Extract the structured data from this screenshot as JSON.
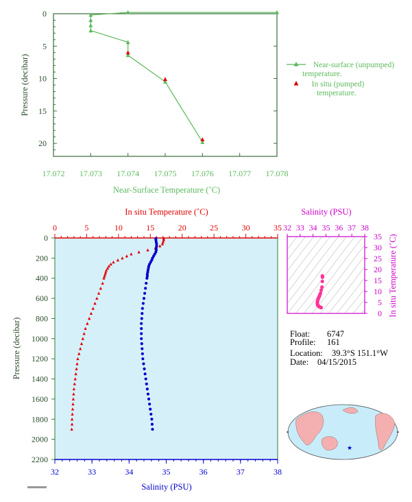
{
  "colors": {
    "green": "#5cb85c",
    "dark_green": "#2e7d32",
    "red": "#e00000",
    "blue": "#0000cc",
    "magenta": "#cc00cc",
    "pink": "#ff3399",
    "axis_text": "#2a4a2a",
    "plot_bg": "#d6f0fa",
    "land": "#f4b0b0",
    "ocean": "#c8ecfa"
  },
  "info": {
    "float_label": "Float:",
    "float_value": "6747",
    "profile_label": "Profile:",
    "profile_value": "161",
    "location_label": "Location:",
    "location_value": "39.3°S  151.1°W",
    "date_label": "Date:",
    "date_value": "04/15/2015"
  },
  "chart_data": [
    {
      "id": "near_surface",
      "type": "line",
      "xlabel": "Near-Surface Temperature (˚C)",
      "ylabel": "Pressure (decibar)",
      "xlim": [
        17.072,
        17.078
      ],
      "ylim": [
        22,
        0
      ],
      "x_ticks": [
        "17.072",
        "17.073",
        "17.074",
        "17.075",
        "17.076",
        "17.077",
        "17.078"
      ],
      "y_ticks": [
        "0",
        "5",
        "10",
        "15",
        "20"
      ],
      "legend_position": "right",
      "series": [
        {
          "name": "Near-surface (unpumped)\ntemperature.",
          "marker": "triangle",
          "color": "#5cb85c",
          "points": [
            [
              17.078,
              -0.2
            ],
            [
              17.074,
              -0.2
            ],
            [
              17.073,
              0.2
            ],
            [
              17.073,
              1.0
            ],
            [
              17.073,
              1.8
            ],
            [
              17.073,
              2.6
            ],
            [
              17.074,
              4.4
            ],
            [
              17.074,
              6.4
            ],
            [
              17.075,
              10.5
            ],
            [
              17.076,
              19.8
            ]
          ]
        },
        {
          "name": "In situ (pumped)\ntemperature.",
          "marker": "triangle",
          "color": "#e00000",
          "points": [
            [
              17.074,
              6.0
            ],
            [
              17.075,
              10.1
            ],
            [
              17.076,
              19.4
            ]
          ]
        }
      ]
    },
    {
      "id": "profile",
      "type": "scatter",
      "top_xlabel": "In situ Temperature (˚C)",
      "bottom_xlabel": "Salinity (PSU)",
      "ylabel": "Pressure (decibar)",
      "temp_lim": [
        0,
        35
      ],
      "sal_lim": [
        32,
        38
      ],
      "ylim": [
        2200,
        0
      ],
      "temp_ticks": [
        "0",
        "5",
        "10",
        "15",
        "20",
        "25",
        "30",
        "35"
      ],
      "sal_ticks": [
        "32",
        "33",
        "34",
        "35",
        "36",
        "37",
        "38"
      ],
      "y_ticks": [
        "0",
        "200",
        "400",
        "600",
        "800",
        "1000",
        "1200",
        "1400",
        "1600",
        "1800",
        "2000",
        "2200"
      ],
      "temperature": [
        [
          17.1,
          5
        ],
        [
          17.1,
          20
        ],
        [
          17.0,
          40
        ],
        [
          16.9,
          60
        ],
        [
          16.5,
          80
        ],
        [
          15.8,
          100
        ],
        [
          14.6,
          120
        ],
        [
          13.2,
          140
        ],
        [
          12.0,
          160
        ],
        [
          11.3,
          180
        ],
        [
          10.6,
          200
        ],
        [
          9.9,
          220
        ],
        [
          9.2,
          240
        ],
        [
          8.8,
          260
        ],
        [
          8.5,
          280
        ],
        [
          8.3,
          300
        ],
        [
          8.1,
          320
        ],
        [
          8.0,
          340
        ],
        [
          7.9,
          360
        ],
        [
          7.8,
          380
        ],
        [
          7.7,
          400
        ],
        [
          7.5,
          450
        ],
        [
          7.2,
          500
        ],
        [
          6.9,
          550
        ],
        [
          6.6,
          600
        ],
        [
          6.3,
          650
        ],
        [
          6.0,
          700
        ],
        [
          5.7,
          750
        ],
        [
          5.4,
          800
        ],
        [
          5.1,
          850
        ],
        [
          4.8,
          900
        ],
        [
          4.6,
          950
        ],
        [
          4.4,
          1000
        ],
        [
          4.2,
          1050
        ],
        [
          4.0,
          1100
        ],
        [
          3.8,
          1150
        ],
        [
          3.6,
          1200
        ],
        [
          3.5,
          1250
        ],
        [
          3.4,
          1300
        ],
        [
          3.3,
          1350
        ],
        [
          3.2,
          1400
        ],
        [
          3.1,
          1450
        ],
        [
          3.0,
          1500
        ],
        [
          2.95,
          1550
        ],
        [
          2.9,
          1600
        ],
        [
          2.85,
          1650
        ],
        [
          2.8,
          1700
        ],
        [
          2.75,
          1750
        ],
        [
          2.7,
          1800
        ],
        [
          2.7,
          1850
        ],
        [
          2.65,
          1900
        ]
      ],
      "salinity": [
        [
          34.72,
          5
        ],
        [
          34.72,
          20
        ],
        [
          34.73,
          40
        ],
        [
          34.74,
          60
        ],
        [
          34.74,
          80
        ],
        [
          34.73,
          100
        ],
        [
          34.73,
          120
        ],
        [
          34.72,
          140
        ],
        [
          34.69,
          160
        ],
        [
          34.66,
          180
        ],
        [
          34.63,
          200
        ],
        [
          34.61,
          220
        ],
        [
          34.58,
          240
        ],
        [
          34.55,
          260
        ],
        [
          34.53,
          280
        ],
        [
          34.52,
          300
        ],
        [
          34.51,
          320
        ],
        [
          34.5,
          340
        ],
        [
          34.49,
          360
        ],
        [
          34.49,
          380
        ],
        [
          34.48,
          400
        ],
        [
          34.46,
          450
        ],
        [
          34.44,
          500
        ],
        [
          34.42,
          550
        ],
        [
          34.4,
          600
        ],
        [
          34.38,
          650
        ],
        [
          34.36,
          700
        ],
        [
          34.35,
          750
        ],
        [
          34.34,
          800
        ],
        [
          34.33,
          850
        ],
        [
          34.33,
          900
        ],
        [
          34.33,
          950
        ],
        [
          34.33,
          1000
        ],
        [
          34.34,
          1050
        ],
        [
          34.35,
          1100
        ],
        [
          34.36,
          1150
        ],
        [
          34.37,
          1200
        ],
        [
          34.39,
          1250
        ],
        [
          34.41,
          1300
        ],
        [
          34.43,
          1350
        ],
        [
          34.45,
          1400
        ],
        [
          34.47,
          1450
        ],
        [
          34.49,
          1500
        ],
        [
          34.51,
          1550
        ],
        [
          34.53,
          1600
        ],
        [
          34.55,
          1650
        ],
        [
          34.57,
          1700
        ],
        [
          34.59,
          1750
        ],
        [
          34.61,
          1800
        ],
        [
          34.62,
          1850
        ],
        [
          34.63,
          1900
        ]
      ]
    },
    {
      "id": "ts_diagram",
      "type": "scatter",
      "top_xlabel": "Salinity (PSU)",
      "right_ylabel": "In situ Temperature (˚C)",
      "sal_lim": [
        32,
        38
      ],
      "temp_lim": [
        0,
        35
      ],
      "sal_ticks": [
        "32",
        "33",
        "34",
        "35",
        "36",
        "37",
        "38"
      ],
      "temp_ticks": [
        "0",
        "5",
        "10",
        "15",
        "20",
        "25",
        "30",
        "35"
      ],
      "points": [
        [
          34.72,
          17.1
        ],
        [
          34.73,
          16.5
        ],
        [
          34.72,
          14.6
        ],
        [
          34.69,
          12.0
        ],
        [
          34.63,
          10.6
        ],
        [
          34.58,
          9.2
        ],
        [
          34.53,
          8.5
        ],
        [
          34.5,
          8.0
        ],
        [
          34.48,
          7.7
        ],
        [
          34.44,
          7.2
        ],
        [
          34.4,
          6.6
        ],
        [
          34.36,
          6.0
        ],
        [
          34.34,
          5.4
        ],
        [
          34.33,
          4.8
        ],
        [
          34.33,
          4.4
        ],
        [
          34.35,
          4.0
        ],
        [
          34.37,
          3.6
        ],
        [
          34.41,
          3.4
        ],
        [
          34.45,
          3.2
        ],
        [
          34.49,
          3.0
        ],
        [
          34.53,
          2.9
        ],
        [
          34.57,
          2.8
        ],
        [
          34.61,
          2.7
        ],
        [
          34.63,
          2.65
        ]
      ]
    }
  ]
}
